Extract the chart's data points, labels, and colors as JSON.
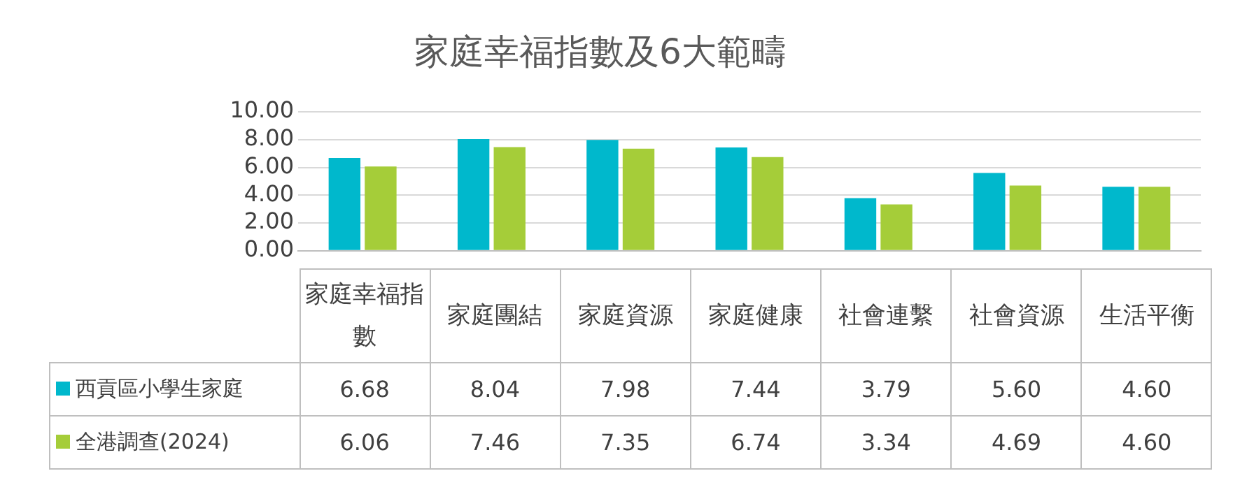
{
  "chart_data": {
    "type": "bar",
    "title": "家庭幸福指數及6大範疇",
    "categories": [
      "家庭幸福指數",
      "家庭團結",
      "家庭資源",
      "家庭健康",
      "社會連繫",
      "社會資源",
      "生活平衡"
    ],
    "series": [
      {
        "name": "西貢區小學生家庭",
        "color": "#00b8cc",
        "values": [
          6.68,
          8.04,
          7.98,
          7.44,
          3.79,
          5.6,
          4.6
        ],
        "value_labels": [
          "6.68",
          "8.04",
          "7.98",
          "7.44",
          "3.79",
          "5.60",
          "4.60"
        ]
      },
      {
        "name": "全港調查(2024)",
        "color": "#a5cd39",
        "values": [
          6.06,
          7.46,
          7.35,
          6.74,
          3.34,
          4.69,
          4.6
        ],
        "value_labels": [
          "6.06",
          "7.46",
          "7.35",
          "6.74",
          "3.34",
          "4.69",
          "4.60"
        ]
      }
    ],
    "ylim": [
      0,
      10
    ],
    "yticks": [
      {
        "value": 0,
        "label": "0.00"
      },
      {
        "value": 2,
        "label": "2.00"
      },
      {
        "value": 4,
        "label": "4.00"
      },
      {
        "value": 6,
        "label": "6.00"
      },
      {
        "value": 8,
        "label": "8.00"
      },
      {
        "value": 10,
        "label": "10.00"
      }
    ],
    "grid": "y",
    "legend": "bottom"
  }
}
